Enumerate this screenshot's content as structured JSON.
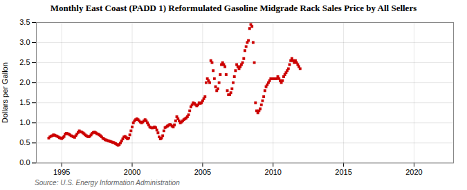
{
  "chart_data": {
    "type": "scatter",
    "title": "Monthly East Coast (PADD 1) Reformulated Gasoline Midgrade Rack Sales Price by All Sellers",
    "ylabel": "Dollars per Gallon",
    "source": "Source: U.S. Energy Information Administration",
    "color": "#cc0000",
    "marker": "square",
    "grid": true,
    "xlim": [
      1993.2,
      2022.8
    ],
    "xticks": [
      1995,
      2000,
      2005,
      2010,
      2015,
      2020
    ],
    "ylim": [
      0.0,
      3.5
    ],
    "yticks": [
      {
        "value": 0.0,
        "label": "0.0"
      },
      0.5,
      {
        "value": 1.0,
        "label": "1.0"
      },
      1.5,
      {
        "value": 2.0,
        "label": "2.0"
      },
      2.5,
      {
        "value": 3.0,
        "label": "3.0"
      },
      3.5
    ],
    "x": [
      1994.083,
      1994.167,
      1994.25,
      1994.333,
      1994.417,
      1994.5,
      1994.583,
      1994.667,
      1994.75,
      1994.833,
      1994.917,
      1995.0,
      1995.083,
      1995.167,
      1995.25,
      1995.333,
      1995.417,
      1995.5,
      1995.583,
      1995.667,
      1995.75,
      1995.833,
      1995.917,
      1996.0,
      1996.083,
      1996.167,
      1996.25,
      1996.333,
      1996.417,
      1996.5,
      1996.583,
      1996.667,
      1996.75,
      1996.833,
      1996.917,
      1997.0,
      1997.083,
      1997.167,
      1997.25,
      1997.333,
      1997.417,
      1997.5,
      1997.583,
      1997.667,
      1997.75,
      1997.833,
      1997.917,
      1998.0,
      1998.083,
      1998.167,
      1998.25,
      1998.333,
      1998.417,
      1998.5,
      1998.583,
      1998.667,
      1998.75,
      1998.833,
      1998.917,
      1999.0,
      1999.083,
      1999.167,
      1999.25,
      1999.333,
      1999.417,
      1999.5,
      1999.583,
      1999.667,
      1999.75,
      1999.833,
      1999.917,
      2000.0,
      2000.083,
      2000.167,
      2000.25,
      2000.333,
      2000.417,
      2000.5,
      2000.583,
      2000.667,
      2000.75,
      2000.833,
      2000.917,
      2001.0,
      2001.083,
      2001.167,
      2001.25,
      2001.333,
      2001.417,
      2001.5,
      2001.583,
      2001.667,
      2001.75,
      2001.833,
      2001.917,
      2002.0,
      2002.083,
      2002.167,
      2002.25,
      2002.333,
      2002.417,
      2002.5,
      2002.583,
      2002.667,
      2002.75,
      2002.833,
      2002.917,
      2003.0,
      2003.083,
      2003.167,
      2003.25,
      2003.333,
      2003.417,
      2003.5,
      2003.583,
      2003.667,
      2003.75,
      2003.833,
      2003.917,
      2004.0,
      2004.083,
      2004.167,
      2004.25,
      2004.333,
      2004.417,
      2004.5,
      2004.583,
      2004.667,
      2004.75,
      2004.833,
      2004.917,
      2005.0,
      2005.083,
      2005.167,
      2005.25,
      2005.333,
      2005.417,
      2005.5,
      2005.583,
      2005.667,
      2005.75,
      2005.833,
      2005.917,
      2006.0,
      2006.083,
      2006.167,
      2006.25,
      2006.333,
      2006.417,
      2006.5,
      2006.583,
      2006.667,
      2006.75,
      2006.833,
      2006.917,
      2007.0,
      2007.083,
      2007.167,
      2007.25,
      2007.333,
      2007.417,
      2007.5,
      2007.583,
      2007.667,
      2007.75,
      2007.833,
      2007.917,
      2008.0,
      2008.083,
      2008.167,
      2008.25,
      2008.333,
      2008.417,
      2008.5,
      2008.583,
      2008.667,
      2008.75,
      2008.833,
      2008.917,
      2009.0,
      2009.083,
      2009.167,
      2009.25,
      2009.333,
      2009.417,
      2009.5,
      2009.583,
      2009.667,
      2009.75,
      2009.833,
      2009.917,
      2010.0,
      2010.083,
      2010.167,
      2010.25,
      2010.333,
      2010.417,
      2010.5,
      2010.583,
      2010.667,
      2010.75,
      2010.833,
      2010.917,
      2011.0,
      2011.083,
      2011.167,
      2011.25,
      2011.333,
      2011.417,
      2011.5,
      2011.583,
      2011.667,
      2011.75,
      2011.833,
      2011.917
    ],
    "values": [
      0.62,
      0.65,
      0.67,
      0.68,
      0.7,
      0.69,
      0.68,
      0.67,
      0.65,
      0.63,
      0.62,
      0.61,
      0.63,
      0.66,
      0.72,
      0.74,
      0.73,
      0.72,
      0.7,
      0.68,
      0.67,
      0.65,
      0.64,
      0.68,
      0.72,
      0.76,
      0.8,
      0.78,
      0.77,
      0.75,
      0.73,
      0.7,
      0.68,
      0.66,
      0.65,
      0.67,
      0.7,
      0.74,
      0.76,
      0.77,
      0.75,
      0.73,
      0.72,
      0.7,
      0.68,
      0.65,
      0.62,
      0.6,
      0.58,
      0.57,
      0.56,
      0.55,
      0.54,
      0.53,
      0.52,
      0.51,
      0.5,
      0.48,
      0.46,
      0.44,
      0.46,
      0.5,
      0.55,
      0.6,
      0.65,
      0.66,
      0.63,
      0.6,
      0.62,
      0.7,
      0.8,
      0.9,
      1.0,
      1.05,
      1.08,
      1.1,
      1.08,
      1.05,
      1.02,
      1.0,
      1.02,
      1.05,
      1.08,
      1.05,
      1.0,
      0.95,
      0.9,
      0.88,
      0.87,
      0.88,
      0.9,
      0.88,
      0.82,
      0.75,
      0.65,
      0.6,
      0.62,
      0.68,
      0.8,
      0.88,
      0.9,
      0.92,
      0.94,
      0.96,
      0.95,
      0.92,
      0.9,
      0.95,
      1.05,
      1.15,
      1.1,
      1.05,
      1.0,
      1.02,
      1.05,
      1.08,
      1.1,
      1.12,
      1.15,
      1.2,
      1.3,
      1.4,
      1.45,
      1.5,
      1.48,
      1.45,
      1.42,
      1.45,
      1.5,
      1.48,
      1.5,
      1.55,
      1.6,
      1.65,
      2.0,
      2.1,
      2.05,
      2.0,
      2.55,
      2.5,
      2.3,
      2.1,
      1.9,
      1.8,
      1.85,
      2.0,
      2.2,
      2.45,
      2.5,
      2.45,
      2.4,
      2.2,
      1.8,
      1.7,
      1.7,
      1.75,
      1.85,
      2.0,
      2.15,
      2.3,
      2.45,
      2.4,
      2.35,
      2.4,
      2.45,
      2.5,
      2.6,
      2.8,
      2.9,
      3.0,
      3.05,
      3.35,
      3.45,
      3.4,
      3.0,
      2.5,
      1.5,
      1.3,
      1.25,
      1.3,
      1.35,
      1.45,
      1.55,
      1.65,
      1.8,
      1.9,
      1.95,
      2.0,
      2.05,
      2.1,
      2.1,
      2.1,
      2.1,
      2.1,
      2.1,
      2.15,
      2.1,
      2.05,
      2.0,
      2.05,
      2.15,
      2.2,
      2.25,
      2.3,
      2.35,
      2.45,
      2.55,
      2.6,
      2.55,
      2.5,
      2.55,
      2.5,
      2.45,
      2.4,
      2.35
    ]
  }
}
